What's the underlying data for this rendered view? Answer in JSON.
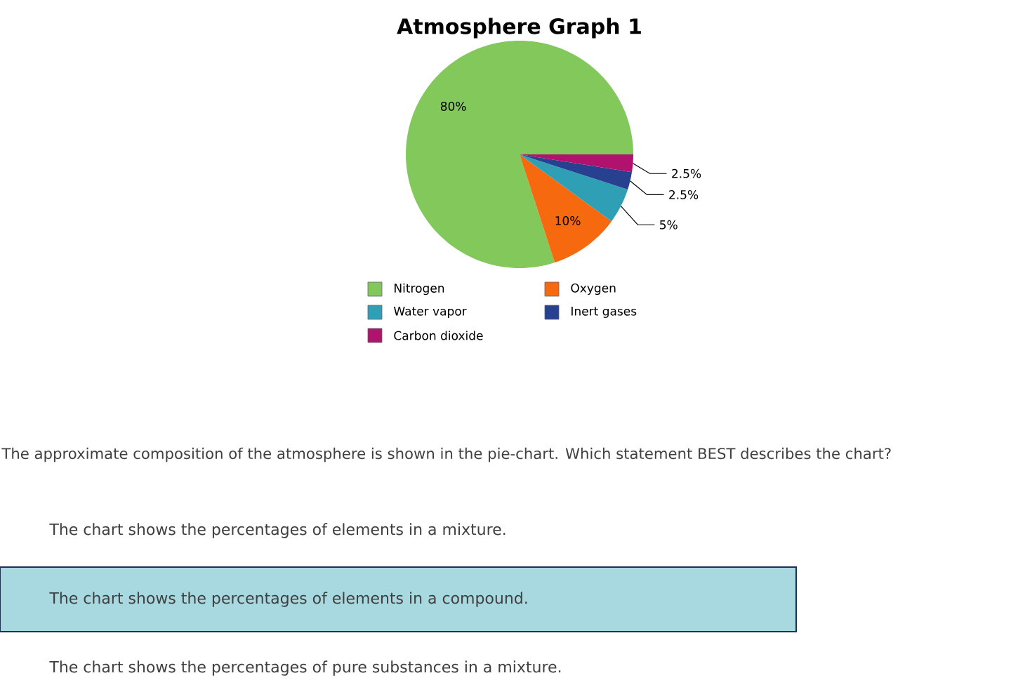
{
  "chart_data": {
    "type": "pie",
    "title": "Atmosphere Graph 1",
    "categories": [
      "Nitrogen",
      "Oxygen",
      "Water vapor",
      "Inert gases",
      "Carbon dioxide"
    ],
    "values": [
      80,
      10,
      5,
      2.5,
      2.5
    ],
    "colors": [
      "#82c85a",
      "#f7690f",
      "#2e9fb5",
      "#27408f",
      "#b0126e"
    ],
    "value_labels": [
      "80%",
      "10%",
      "5%",
      "2.5%",
      "2.5%"
    ],
    "legend": "bottom",
    "annotations": [
      "The approximate composition of the atmosphere is shown in the pie-chart. Which statement BEST describes the chart?",
      "The chart shows the percentages of elements in a mixture.",
      "The chart shows the percentages of elements in a compound.",
      "The chart shows the percentages of pure substances in a mixture."
    ]
  }
}
